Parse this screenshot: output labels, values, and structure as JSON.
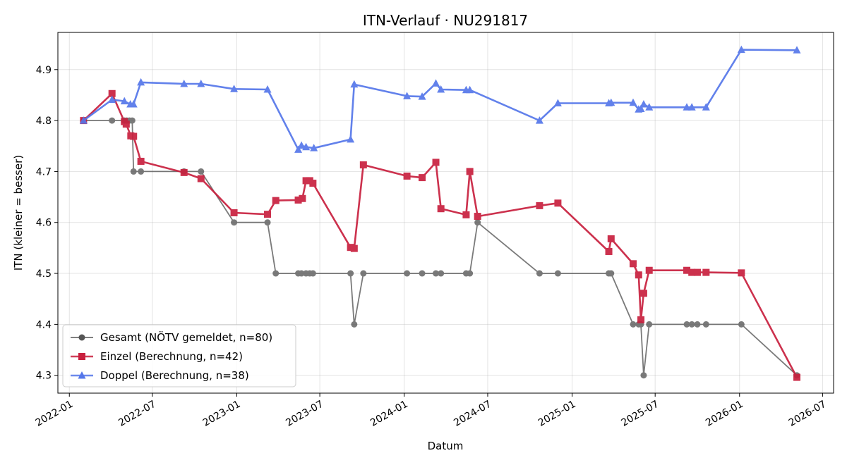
{
  "chart_data": {
    "type": "line",
    "title": "ITN-Verlauf · NU291817",
    "xlabel": "Datum",
    "ylabel": "ITN  (kleiner = besser)",
    "x_axis_type": "date",
    "xlim": [
      "2021-12-07",
      "2026-07-25"
    ],
    "ylim": [
      4.265,
      4.973
    ],
    "x_ticks": [
      "2022-01",
      "2022-07",
      "2023-01",
      "2023-07",
      "2024-01",
      "2024-07",
      "2025-01",
      "2025-07",
      "2026-01",
      "2026-07"
    ],
    "y_ticks": [
      4.3,
      4.4,
      4.5,
      4.6,
      4.7,
      4.8,
      4.9
    ],
    "grid": true,
    "legend_position": "lower-left",
    "series": [
      {
        "name": "Gesamt (NÖTV gemeldet, n=80)",
        "color": "#555555",
        "marker": "circle",
        "points": [
          [
            "2022-02-01",
            4.8
          ],
          [
            "2022-04-04",
            4.8
          ],
          [
            "2022-05-01",
            4.8
          ],
          [
            "2022-05-06",
            4.8
          ],
          [
            "2022-05-12",
            4.8
          ],
          [
            "2022-05-18",
            4.8
          ],
          [
            "2022-05-21",
            4.7
          ],
          [
            "2022-06-06",
            4.7
          ],
          [
            "2022-09-08",
            4.7
          ],
          [
            "2022-10-15",
            4.7
          ],
          [
            "2022-12-26",
            4.6
          ],
          [
            "2023-03-09",
            4.6
          ],
          [
            "2023-03-27",
            4.5
          ],
          [
            "2023-05-15",
            4.5
          ],
          [
            "2023-05-22",
            4.5
          ],
          [
            "2023-06-01",
            4.5
          ],
          [
            "2023-06-09",
            4.5
          ],
          [
            "2023-06-16",
            4.5
          ],
          [
            "2023-09-06",
            4.5
          ],
          [
            "2023-09-14",
            4.4
          ],
          [
            "2023-10-04",
            4.5
          ],
          [
            "2024-01-07",
            4.5
          ],
          [
            "2024-02-09",
            4.5
          ],
          [
            "2024-03-10",
            4.5
          ],
          [
            "2024-03-21",
            4.5
          ],
          [
            "2024-05-15",
            4.5
          ],
          [
            "2024-05-23",
            4.5
          ],
          [
            "2024-06-09",
            4.6
          ],
          [
            "2024-10-22",
            4.5
          ],
          [
            "2024-12-01",
            4.5
          ],
          [
            "2025-03-22",
            4.5
          ],
          [
            "2025-03-27",
            4.5
          ],
          [
            "2025-05-14",
            4.4
          ],
          [
            "2025-05-26",
            4.4
          ],
          [
            "2025-05-31",
            4.4
          ],
          [
            "2025-06-06",
            4.3
          ],
          [
            "2025-06-18",
            4.4
          ],
          [
            "2025-09-08",
            4.4
          ],
          [
            "2025-09-19",
            4.4
          ],
          [
            "2025-10-01",
            4.4
          ],
          [
            "2025-10-20",
            4.4
          ],
          [
            "2026-01-05",
            4.4
          ],
          [
            "2026-05-06",
            4.3
          ]
        ]
      },
      {
        "name": "Einzel (Berechnung, n=42)",
        "color": "#c8203e",
        "marker": "square",
        "points": [
          [
            "2022-02-01",
            4.8
          ],
          [
            "2022-04-04",
            4.853
          ],
          [
            "2022-05-01",
            4.798
          ],
          [
            "2022-05-05",
            4.793
          ],
          [
            "2022-05-15",
            4.77
          ],
          [
            "2022-05-21",
            4.769
          ],
          [
            "2022-06-06",
            4.72
          ],
          [
            "2022-09-08",
            4.698
          ],
          [
            "2022-10-15",
            4.686
          ],
          [
            "2022-12-26",
            4.619
          ],
          [
            "2023-03-09",
            4.616
          ],
          [
            "2023-03-27",
            4.643
          ],
          [
            "2023-05-15",
            4.644
          ],
          [
            "2023-05-24",
            4.647
          ],
          [
            "2023-06-01",
            4.682
          ],
          [
            "2023-06-09",
            4.682
          ],
          [
            "2023-06-16",
            4.677
          ],
          [
            "2023-09-06",
            4.551
          ],
          [
            "2023-09-14",
            4.549
          ],
          [
            "2023-10-04",
            4.713
          ],
          [
            "2024-01-07",
            4.691
          ],
          [
            "2024-02-09",
            4.688
          ],
          [
            "2024-03-10",
            4.718
          ],
          [
            "2024-03-21",
            4.627
          ],
          [
            "2024-05-15",
            4.615
          ],
          [
            "2024-05-23",
            4.7
          ],
          [
            "2024-06-09",
            4.612
          ],
          [
            "2024-10-22",
            4.633
          ],
          [
            "2024-12-01",
            4.638
          ],
          [
            "2025-03-22",
            4.543
          ],
          [
            "2025-03-27",
            4.568
          ],
          [
            "2025-05-14",
            4.519
          ],
          [
            "2025-05-26",
            4.497
          ],
          [
            "2025-05-31",
            4.409
          ],
          [
            "2025-06-06",
            4.461
          ],
          [
            "2025-06-18",
            4.506
          ],
          [
            "2025-09-08",
            4.506
          ],
          [
            "2025-09-19",
            4.502
          ],
          [
            "2025-10-01",
            4.502
          ],
          [
            "2025-10-20",
            4.502
          ],
          [
            "2026-01-05",
            4.501
          ],
          [
            "2026-05-06",
            4.296
          ]
        ]
      },
      {
        "name": "Doppel (Berechnung, n=38)",
        "color": "#5577ea",
        "marker": "triangle",
        "points": [
          [
            "2022-02-01",
            4.8
          ],
          [
            "2022-04-04",
            4.841
          ],
          [
            "2022-05-01",
            4.838
          ],
          [
            "2022-05-14",
            4.832
          ],
          [
            "2022-05-21",
            4.832
          ],
          [
            "2022-06-06",
            4.875
          ],
          [
            "2022-09-08",
            4.872
          ],
          [
            "2022-10-15",
            4.872
          ],
          [
            "2022-12-26",
            4.862
          ],
          [
            "2023-03-09",
            4.861
          ],
          [
            "2023-05-15",
            4.743
          ],
          [
            "2023-05-22",
            4.751
          ],
          [
            "2023-06-01",
            4.748
          ],
          [
            "2023-06-18",
            4.746
          ],
          [
            "2023-09-06",
            4.763
          ],
          [
            "2023-09-14",
            4.871
          ],
          [
            "2024-01-07",
            4.848
          ],
          [
            "2024-02-09",
            4.847
          ],
          [
            "2024-03-10",
            4.873
          ],
          [
            "2024-03-21",
            4.861
          ],
          [
            "2024-05-15",
            4.86
          ],
          [
            "2024-05-23",
            4.86
          ],
          [
            "2024-10-22",
            4.8
          ],
          [
            "2024-12-01",
            4.834
          ],
          [
            "2025-03-22",
            4.834
          ],
          [
            "2025-03-27",
            4.835
          ],
          [
            "2025-05-14",
            4.835
          ],
          [
            "2025-05-26",
            4.822
          ],
          [
            "2025-05-31",
            4.823
          ],
          [
            "2025-06-06",
            4.832
          ],
          [
            "2025-06-18",
            4.826
          ],
          [
            "2025-09-08",
            4.826
          ],
          [
            "2025-09-19",
            4.826
          ],
          [
            "2025-10-20",
            4.826
          ],
          [
            "2026-01-05",
            4.939
          ],
          [
            "2026-05-06",
            4.938
          ]
        ]
      }
    ]
  }
}
